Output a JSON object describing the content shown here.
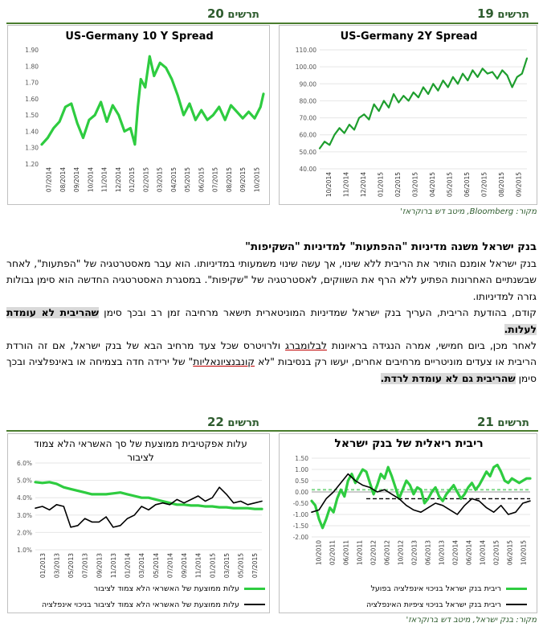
{
  "figures": {
    "fig20": {
      "label_word": "תרשים",
      "label_num": "20"
    },
    "fig19": {
      "label_word": "תרשים",
      "label_num": "19"
    },
    "fig22": {
      "label_word": "תרשים",
      "label_num": "22"
    },
    "fig21": {
      "label_word": "תרשים",
      "label_num": "21"
    }
  },
  "source_top": {
    "prefix": "מקור: ",
    "main": "Bloomberg",
    "suffix": ", מיטב דש ברוקראז'"
  },
  "source_bottom": {
    "text": "מקור: בנק ישראל, מיטב דש ברוקראז'"
  },
  "article": {
    "heading": "בנק ישראל משנה מדיניות \"ההפתעות\" למדיניות \"השקיפות\"",
    "p1": "בנק ישראל אומנם הותיר את הריבית ללא שינוי, אך עשה שינוי משמעותי במדיניותו. הוא עבר מאסטרטגיה של \"הפתעות\", לאחר שבשנתיים האחרונות הפתיע ללא הרף את השווקים, לאסטרטגיה של \"שקיפות\". במסגרת האסטרטגיה החדשה הוא סימן גבולות גזרה למדיניותו.",
    "p2_main": "קודם, בהודעת הריבית, העריך בנק ישראל שמדיניות המוניטארית תישאר מרחיבה זמן רב ובכך סימן ",
    "p2_hl": "שהריבית לא עומדת לעלות.",
    "p3_a": "לאחר מכן, ביום חמישי, אמרה הנגידה בראיונות ",
    "p3_ul1": "לבלומברג",
    "p3_b": " ולרויטרס שכל צעד מרחיב הבא של בנק ישראל, אם זה הורדת הריבית או צעדים מוניטריים מרחיבים אחרים, יעשו רק בנסיבות \"לא ",
    "p3_ul2": "קונבנציונאליות",
    "p3_c": "\" של ירידה חדה בצמיחה או באינפלציה ובכך סימן ",
    "p3_hl": "שהריבית גם לא עומדת לרדת."
  },
  "chart_data": [
    {
      "id": "us-germany-10y",
      "type": "line",
      "title": "US-Germany 10 Y Spread",
      "ylim": [
        1.2,
        1.9
      ],
      "yticks": [
        "1.20",
        "1.30",
        "1.40",
        "1.50",
        "1.60",
        "1.70",
        "1.80",
        "1.90"
      ],
      "xticks": [
        "07/2014",
        "08/2014",
        "09/2014",
        "10/2014",
        "11/2014",
        "12/2014",
        "01/2015",
        "02/2015",
        "03/2015",
        "04/2015",
        "05/2015",
        "06/2015",
        "07/2015",
        "08/2015",
        "09/2015",
        "10/2015"
      ],
      "color": "#2ecc40",
      "series": [
        {
          "x": [
            0,
            0.4,
            0.8,
            1.2,
            1.6,
            2.0,
            2.4,
            2.8,
            3.2,
            3.6,
            4.0,
            4.4,
            4.8,
            5.2,
            5.6,
            6.0,
            6.3,
            6.5,
            6.7,
            7.0,
            7.3,
            7.6,
            8.0,
            8.4,
            8.8,
            9.2,
            9.6,
            10.0,
            10.4,
            10.8,
            11.2,
            11.6,
            12.0,
            12.4,
            12.8,
            13.2,
            13.6,
            14.0,
            14.4,
            14.8,
            15.0
          ],
          "values": [
            1.32,
            1.36,
            1.42,
            1.46,
            1.55,
            1.57,
            1.45,
            1.36,
            1.47,
            1.5,
            1.58,
            1.46,
            1.56,
            1.5,
            1.4,
            1.42,
            1.32,
            1.55,
            1.72,
            1.67,
            1.86,
            1.74,
            1.82,
            1.79,
            1.72,
            1.62,
            1.5,
            1.57,
            1.47,
            1.53,
            1.47,
            1.5,
            1.55,
            1.47,
            1.56,
            1.52,
            1.48,
            1.52,
            1.48,
            1.55,
            1.63
          ]
        }
      ]
    },
    {
      "id": "us-germany-2y",
      "type": "line",
      "title": "US-Germany 2Y Spread",
      "ylim": [
        40,
        110
      ],
      "yticks": [
        "40.00",
        "50.00",
        "60.00",
        "70.00",
        "80.00",
        "90.00",
        "100.00",
        "110.00"
      ],
      "xticks": [
        "10/2014",
        "11/2014",
        "12/2014",
        "01/2015",
        "02/2015",
        "03/2015",
        "04/2015",
        "05/2015",
        "06/2015",
        "07/2015",
        "08/2015",
        "09/2015"
      ],
      "color": "#1e9e2e",
      "series": [
        {
          "x": [
            0,
            0.3,
            0.6,
            0.9,
            1.2,
            1.5,
            1.8,
            2.1,
            2.4,
            2.7,
            3.0,
            3.3,
            3.6,
            3.9,
            4.2,
            4.5,
            4.8,
            5.1,
            5.4,
            5.7,
            6.0,
            6.3,
            6.6,
            6.9,
            7.2,
            7.5,
            7.8,
            8.1,
            8.4,
            8.7,
            9.0,
            9.3,
            9.6,
            9.9,
            10.2,
            10.5,
            10.8,
            11.1,
            11.4,
            11.7,
            12.0,
            12.3,
            12.6
          ],
          "values": [
            52,
            56,
            54,
            60,
            64,
            61,
            66,
            63,
            70,
            72,
            69,
            78,
            74,
            80,
            76,
            84,
            79,
            83,
            80,
            85,
            82,
            88,
            84,
            90,
            86,
            92,
            88,
            94,
            90,
            96,
            92,
            98,
            94,
            99,
            96,
            97,
            93,
            98,
            95,
            88,
            94,
            96,
            105
          ]
        }
      ]
    },
    {
      "id": "effective-cost-credit",
      "type": "line",
      "title": "עלות אפקטיבית ממוצעת של סך האשראי הלא צמוד לציבור",
      "ylim": [
        1.0,
        6.0
      ],
      "yticks": [
        "1.0%",
        "2.0%",
        "3.0%",
        "4.0%",
        "5.0%",
        "6.0%"
      ],
      "xticks": [
        "01/2013",
        "03/2013",
        "05/2013",
        "07/2013",
        "09/2013",
        "11/2013",
        "01/2014",
        "03/2014",
        "05/2014",
        "07/2014",
        "09/2014",
        "11/2014",
        "01/2015",
        "03/2015",
        "05/2015",
        "07/2015"
      ],
      "series": [
        {
          "name": "עלות ממוצעת של האשראי הלא צמוד לציבור",
          "color": "#2ecc40",
          "x": [
            0,
            1,
            2,
            3,
            4,
            5,
            6,
            7,
            8,
            9,
            10,
            11,
            12,
            13,
            14,
            15,
            16,
            17,
            18,
            19,
            20,
            21,
            22,
            23,
            24,
            25,
            26,
            27,
            28,
            29,
            30,
            31,
            32
          ],
          "values": [
            4.9,
            4.85,
            4.9,
            4.8,
            4.6,
            4.5,
            4.4,
            4.3,
            4.2,
            4.2,
            4.2,
            4.25,
            4.3,
            4.2,
            4.1,
            4.0,
            4.0,
            3.9,
            3.8,
            3.7,
            3.6,
            3.6,
            3.55,
            3.55,
            3.5,
            3.5,
            3.45,
            3.45,
            3.4,
            3.4,
            3.4,
            3.35,
            3.35
          ]
        },
        {
          "name": "עלות ממוצעת של האשראי הלא צמוד לציבור בניכוי אינפלציה",
          "color": "#000000",
          "x": [
            0,
            1,
            2,
            3,
            4,
            5,
            6,
            7,
            8,
            9,
            10,
            11,
            12,
            13,
            14,
            15,
            16,
            17,
            18,
            19,
            20,
            21,
            22,
            23,
            24,
            25,
            26,
            27,
            28,
            29,
            30,
            31,
            32
          ],
          "values": [
            3.4,
            3.5,
            3.3,
            3.6,
            3.5,
            2.3,
            2.4,
            2.8,
            2.6,
            2.6,
            2.9,
            2.3,
            2.4,
            2.8,
            3.0,
            3.5,
            3.3,
            3.6,
            3.7,
            3.6,
            3.9,
            3.7,
            3.9,
            4.1,
            3.8,
            4.0,
            4.6,
            4.2,
            3.7,
            3.8,
            3.6,
            3.7,
            3.8
          ]
        }
      ]
    },
    {
      "id": "real-interest-boi",
      "type": "line",
      "title": "ריבית ריאלית של בנק ישראל",
      "ylim": [
        -2.0,
        1.5
      ],
      "yticks": [
        "-2.00",
        "-1.50",
        "-1.00",
        "-0.50",
        "0.00",
        "0.50",
        "1.00",
        "1.50"
      ],
      "xticks": [
        "10/2010",
        "02/2011",
        "06/2011",
        "10/2011",
        "02/2012",
        "06/2012",
        "10/2012",
        "02/2013",
        "06/2013",
        "10/2013",
        "02/2014",
        "06/2014",
        "10/2014",
        "02/2015",
        "06/2015",
        "10/2015"
      ],
      "series": [
        {
          "name": "ריבית בנק ישראל בניכוי אינפלציה בפועל",
          "color": "#2ecc40",
          "x": [
            0,
            1,
            2,
            3,
            4,
            5,
            6,
            7,
            8,
            9,
            10,
            11,
            12,
            13,
            14,
            15,
            16,
            17,
            18,
            19,
            20,
            21,
            22,
            23,
            24,
            25,
            26,
            27,
            28,
            29,
            30,
            31,
            32,
            33,
            34,
            35,
            36,
            37,
            38,
            39,
            40,
            41,
            42,
            43,
            44,
            45,
            46,
            47,
            48,
            49,
            50,
            51,
            52,
            53,
            54,
            55,
            56,
            57,
            58,
            59,
            60
          ],
          "values": [
            -0.4,
            -0.6,
            -1.2,
            -1.6,
            -1.2,
            -0.7,
            -0.9,
            -0.3,
            0.1,
            -0.2,
            0.5,
            0.8,
            0.4,
            0.7,
            1.0,
            0.9,
            0.4,
            -0.1,
            0.3,
            0.8,
            0.6,
            1.1,
            0.7,
            0.2,
            -0.3,
            0.1,
            0.5,
            0.3,
            -0.1,
            0.2,
            0.1,
            -0.5,
            -0.3,
            0.0,
            0.2,
            -0.2,
            -0.4,
            -0.1,
            0.1,
            0.3,
            0.0,
            -0.3,
            -0.1,
            0.2,
            0.4,
            0.1,
            0.3,
            0.6,
            0.9,
            0.7,
            1.1,
            1.2,
            0.9,
            0.5,
            0.4,
            0.6,
            0.5,
            0.4,
            0.5,
            0.6,
            0.6
          ]
        },
        {
          "name": "ריבית בנק ישראל בניכוי ציפיות האינפלציה",
          "color": "#000000",
          "x": [
            0,
            2,
            4,
            6,
            8,
            10,
            12,
            14,
            16,
            18,
            20,
            22,
            24,
            26,
            28,
            30,
            32,
            34,
            36,
            38,
            40,
            42,
            44,
            46,
            48,
            50,
            52,
            54,
            56,
            58,
            60
          ],
          "values": [
            -0.9,
            -0.8,
            -0.3,
            0.0,
            0.4,
            0.8,
            0.5,
            0.3,
            0.2,
            0.0,
            0.1,
            -0.1,
            -0.3,
            -0.6,
            -0.8,
            -0.9,
            -0.7,
            -0.5,
            -0.6,
            -0.8,
            -1.0,
            -0.6,
            -0.3,
            -0.4,
            -0.7,
            -0.9,
            -0.6,
            -1.0,
            -0.9,
            -0.5,
            -0.4
          ]
        }
      ]
    }
  ]
}
